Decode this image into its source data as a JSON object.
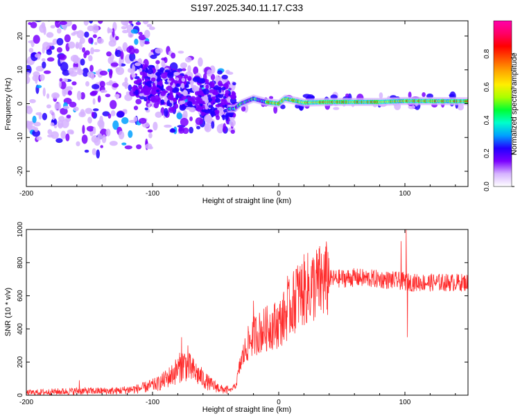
{
  "title": "S197.2025.340.11.17.C33",
  "colors": {
    "snr_line": "#ff2a2a",
    "axis": "#000000",
    "background": "#ffffff"
  },
  "chart_data": [
    {
      "type": "heatmap",
      "name": "spectrogram",
      "xlabel": "Height of straight line (km)",
      "ylabel": "Frequency (Hz)",
      "xlim": [
        -200,
        150
      ],
      "ylim": [
        -24.5,
        24.5
      ],
      "xticks": [
        -200,
        -100,
        0,
        100
      ],
      "yticks": [
        -20,
        -10,
        0,
        10,
        20
      ],
      "colorbar": {
        "label": "Normalized spectral amplitude",
        "range": [
          0,
          1
        ],
        "ticks": [
          0.0,
          0.2,
          0.4,
          0.6,
          0.8
        ],
        "colors": [
          "#ffffff",
          "#d6b3ff",
          "#7a00ff",
          "#2200ff",
          "#00a0ff",
          "#00ffcc",
          "#00ff33",
          "#aaff00",
          "#ffee00",
          "#ffaa00",
          "#ff5500",
          "#ff0000",
          "#ff0066",
          "#ff00aa"
        ]
      },
      "narrow_line_centers_hz": [
        {
          "x": -35,
          "y": -1.5
        },
        {
          "x": -30,
          "y": 0.0
        },
        {
          "x": -20,
          "y": 1.5
        },
        {
          "x": -10,
          "y": 0.5
        },
        {
          "x": 0,
          "y": 0.0
        },
        {
          "x": 5,
          "y": 1.5
        },
        {
          "x": 20,
          "y": 0.3
        },
        {
          "x": 40,
          "y": 0.5
        },
        {
          "x": 80,
          "y": 0.5
        },
        {
          "x": 100,
          "y": 0.8
        },
        {
          "x": 150,
          "y": 0.7
        }
      ]
    },
    {
      "type": "line",
      "name": "snr",
      "xlabel": "Height of straight line (km)",
      "ylabel": "SNR (10 * v/v)",
      "xlim": [
        -200,
        150
      ],
      "ylim": [
        0,
        1000
      ],
      "xticks": [
        -200,
        -100,
        0,
        100
      ],
      "yticks": [
        0,
        200,
        400,
        600,
        800,
        1000
      ],
      "envelope": {
        "x": [
          -200,
          -160,
          -130,
          -110,
          -95,
          -85,
          -75,
          -65,
          -55,
          -45,
          -38,
          -34,
          -30,
          -25,
          -20,
          -15,
          -10,
          -5,
          0,
          5,
          10,
          15,
          20,
          30,
          40,
          60,
          80,
          95,
          105,
          120,
          150
        ],
        "y": [
          15,
          25,
          25,
          40,
          70,
          120,
          190,
          130,
          70,
          35,
          30,
          60,
          200,
          300,
          360,
          380,
          400,
          420,
          430,
          480,
          540,
          600,
          630,
          670,
          700,
          710,
          700,
          690,
          680,
          680,
          680
        ]
      },
      "spikes": [
        {
          "x": -158,
          "y": 90
        },
        {
          "x": -77,
          "y": 350
        },
        {
          "x": -72,
          "y": 300
        },
        {
          "x": -20,
          "y": 570
        },
        {
          "x": 7,
          "y": 720
        },
        {
          "x": 14,
          "y": 760
        },
        {
          "x": 97,
          "y": 930
        },
        {
          "x": 101,
          "y": 1000
        },
        {
          "x": 102,
          "y": 350
        }
      ]
    }
  ]
}
